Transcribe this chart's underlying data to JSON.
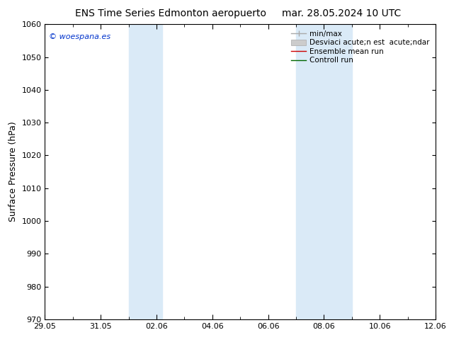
{
  "title_left": "ENS Time Series Edmonton aeropuerto",
  "title_right": "mar. 28.05.2024 10 UTC",
  "ylabel": "Surface Pressure (hPa)",
  "ylim": [
    970,
    1060
  ],
  "yticks": [
    970,
    980,
    990,
    1000,
    1010,
    1020,
    1030,
    1040,
    1050,
    1060
  ],
  "xtick_labels": [
    "29.05",
    "31.05",
    "02.06",
    "04.06",
    "06.06",
    "08.06",
    "10.06",
    "12.06"
  ],
  "xtick_positions": [
    0,
    2,
    4,
    6,
    8,
    10,
    12,
    14
  ],
  "band1_x0": 3.0,
  "band1_x1": 4.2,
  "band2_x0": 9.0,
  "band2_x1": 11.0,
  "shade_color": "#daeaf7",
  "background_color": "#ffffff",
  "watermark": "© woespana.es",
  "legend_label_minmax": "min/max",
  "legend_label_std": "Desviaci acute;n est  acute;ndar",
  "legend_label_ens": "Ensemble mean run",
  "legend_label_ctrl": "Controll run",
  "x_start": 0,
  "x_end": 14,
  "title_fontsize": 10,
  "ylabel_fontsize": 9,
  "tick_fontsize": 8,
  "watermark_fontsize": 8,
  "legend_fontsize": 7.5
}
